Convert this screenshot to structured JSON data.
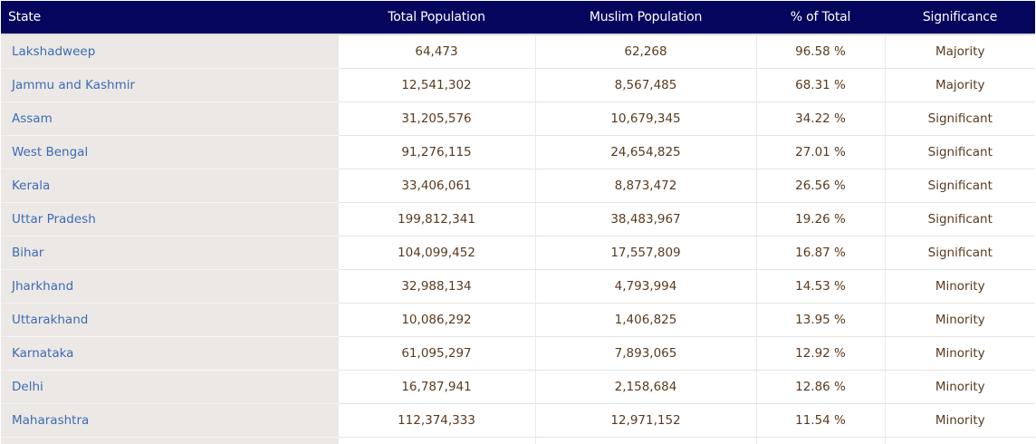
{
  "table": {
    "headers": {
      "state": "State",
      "total": "Total Population",
      "muslim": "Muslim Population",
      "pct": "% of Total",
      "significance": "Significance"
    },
    "rows": [
      {
        "state": "Lakshadweep",
        "total": "64,473",
        "muslim": "62,268",
        "pct": "96.58 %",
        "significance": "Majority"
      },
      {
        "state": "Jammu and Kashmir",
        "total": "12,541,302",
        "muslim": "8,567,485",
        "pct": "68.31 %",
        "significance": "Majority"
      },
      {
        "state": "Assam",
        "total": "31,205,576",
        "muslim": "10,679,345",
        "pct": "34.22 %",
        "significance": "Significant"
      },
      {
        "state": "West Bengal",
        "total": "91,276,115",
        "muslim": "24,654,825",
        "pct": "27.01 %",
        "significance": "Significant"
      },
      {
        "state": "Kerala",
        "total": "33,406,061",
        "muslim": "8,873,472",
        "pct": "26.56 %",
        "significance": "Significant"
      },
      {
        "state": "Uttar Pradesh",
        "total": "199,812,341",
        "muslim": "38,483,967",
        "pct": "19.26 %",
        "significance": "Significant"
      },
      {
        "state": "Bihar",
        "total": "104,099,452",
        "muslim": "17,557,809",
        "pct": "16.87 %",
        "significance": "Significant"
      },
      {
        "state": "Jharkhand",
        "total": "32,988,134",
        "muslim": "4,793,994",
        "pct": "14.53 %",
        "significance": "Minority"
      },
      {
        "state": "Uttarakhand",
        "total": "10,086,292",
        "muslim": "1,406,825",
        "pct": "13.95 %",
        "significance": "Minority"
      },
      {
        "state": "Karnataka",
        "total": "61,095,297",
        "muslim": "7,893,065",
        "pct": "12.92 %",
        "significance": "Minority"
      },
      {
        "state": "Delhi",
        "total": "16,787,941",
        "muslim": "2,158,684",
        "pct": "12.86 %",
        "significance": "Minority"
      },
      {
        "state": "Maharashtra",
        "total": "112,374,333",
        "muslim": "12,971,152",
        "pct": "11.54 %",
        "significance": "Minority"
      }
    ]
  },
  "colors": {
    "header_bg": "#05055e",
    "header_text": "#ffffff",
    "state_column_bg": "#ece8e6",
    "state_link": "#3c6cb4",
    "cell_text": "#5a3a1e"
  }
}
